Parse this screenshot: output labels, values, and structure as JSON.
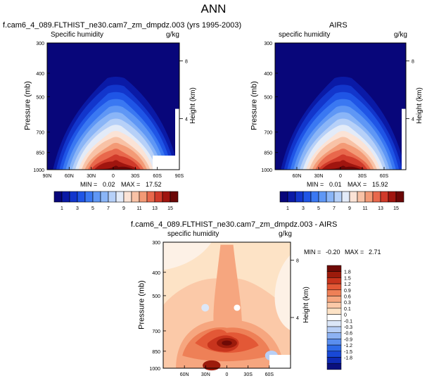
{
  "page": {
    "title": "ANN"
  },
  "colors": {
    "abs_palette": [
      "#08067a",
      "#0a1aa6",
      "#1236cc",
      "#1f55e6",
      "#3a78f2",
      "#5f97f5",
      "#8ab5f7",
      "#b6d0f8",
      "#e3ebf8",
      "#fbe3d6",
      "#f8c2a6",
      "#f39a76",
      "#e8684c",
      "#d03a2a",
      "#a0150f",
      "#6b0707"
    ],
    "diff_palette": [
      "#0a0f7e",
      "#0f2ab4",
      "#1848d6",
      "#2e6ae8",
      "#5a8eef",
      "#8db2f3",
      "#b8cff6",
      "#dce7f8",
      "#ffffff",
      "#fde3c6",
      "#fbc9a8",
      "#f6a67f",
      "#ee8057",
      "#e35836",
      "#c8341d",
      "#9c1b0b",
      "#6f0a06"
    ]
  },
  "chart_data": [
    {
      "type": "heatmap",
      "title": "f.cam6_4_089.FLTHIST_ne30.cam7_zm_dmpdz.003 (yrs 1995-2003)",
      "left_label": "Specific humidity",
      "units": "g/kg",
      "ylabel": "Pressure (mb)",
      "y2label": "Height (km)",
      "x_ticks": [
        "90N",
        "60N",
        "30N",
        "0",
        "30S",
        "60S",
        "90S"
      ],
      "y_ticks": [
        "300",
        "400",
        "500",
        "700",
        "850",
        "1000"
      ],
      "y2_ticks": [
        "8",
        "4"
      ],
      "stats": {
        "min_label": "MIN =",
        "min": "0.02",
        "max_label": "MAX =",
        "max": "17.52"
      },
      "colorbar_labels": [
        "1",
        "3",
        "5",
        "7",
        "9",
        "11",
        "13",
        "15"
      ]
    },
    {
      "type": "heatmap",
      "title": "AIRS",
      "left_label": "specific humidity",
      "units": "g/kg",
      "ylabel": "Pressure (mb)",
      "y2label": "Height (km)",
      "x_ticks": [
        "60N",
        "30N",
        "0",
        "30S",
        "60S"
      ],
      "y_ticks": [
        "300",
        "400",
        "500",
        "700",
        "850",
        "1000"
      ],
      "y2_ticks": [
        "8",
        "4"
      ],
      "stats": {
        "min_label": "MIN =",
        "min": "0.01",
        "max_label": "MAX =",
        "max": "15.92"
      },
      "colorbar_labels": [
        "1",
        "3",
        "5",
        "7",
        "9",
        "11",
        "13",
        "15"
      ]
    },
    {
      "type": "heatmap",
      "title": "f.cam6_4_089.FLTHIST_ne30.cam7_zm_dmpdz.003 - AIRS",
      "left_label": "specific humidity",
      "units": "g/kg",
      "ylabel": "Pressure (mb)",
      "y2label": "Height (km)",
      "x_ticks": [
        "60N",
        "30N",
        "0",
        "30S",
        "60S"
      ],
      "y_ticks": [
        "300",
        "400",
        "500",
        "700",
        "850",
        "1000"
      ],
      "y2_ticks": [
        "8",
        "4"
      ],
      "stats": {
        "min_label": "MIN =",
        "min": "-0.20",
        "max_label": "MAX =",
        "max": "2.71"
      },
      "colorbar_labels": [
        "1.8",
        "1.5",
        "1.2",
        "0.9",
        "0.6",
        "0.3",
        "0.1",
        "0",
        "-0.1",
        "-0.3",
        "-0.6",
        "-0.9",
        "-1.2",
        "-1.5",
        "-1.8"
      ]
    }
  ]
}
